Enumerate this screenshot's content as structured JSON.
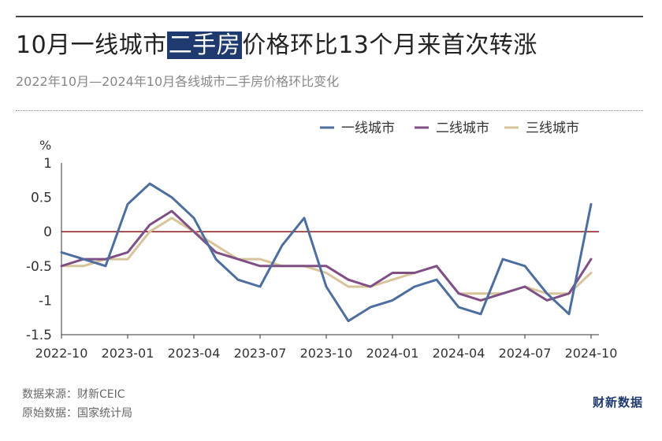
{
  "header": {
    "title_before": "10月一线城市",
    "title_highlight": "二手房",
    "title_after": "价格环比13个月来首次转涨",
    "subtitle": "2022年10月—2024年10月各线城市二手房价格环比变化"
  },
  "footer": {
    "source": "数据来源：财新CEIC",
    "original": "原始数据：国家统计局",
    "logo": "财新数据"
  },
  "chart_data": {
    "type": "line",
    "title": "",
    "unit": "%",
    "ylim": [
      -1.5,
      1
    ],
    "yticks": [
      "1",
      "0.5",
      "0",
      "-0.5",
      "-1",
      "-1.5"
    ],
    "ytick_values": [
      1,
      0.5,
      0,
      -0.5,
      -1,
      -1.5
    ],
    "x": [
      "2022-10",
      "2022-11",
      "2022-12",
      "2023-01",
      "2023-02",
      "2023-03",
      "2023-04",
      "2023-05",
      "2023-06",
      "2023-07",
      "2023-08",
      "2023-09",
      "2023-10",
      "2023-11",
      "2023-12",
      "2024-01",
      "2024-02",
      "2024-03",
      "2024-04",
      "2024-05",
      "2024-06",
      "2024-07",
      "2024-08",
      "2024-09",
      "2024-10"
    ],
    "xtick_labels": [
      "2022-10",
      "2023-01",
      "2023-04",
      "2023-07",
      "2023-10",
      "2024-01",
      "2024-04",
      "2024-07",
      "2024-10"
    ],
    "grid": false,
    "zero_line_color": "#8b1a1a",
    "legend_position": "top-right",
    "series": [
      {
        "name": "一线城市",
        "color": "#4d6e9e",
        "values": [
          -0.3,
          -0.4,
          -0.5,
          0.4,
          0.7,
          0.5,
          0.2,
          -0.4,
          -0.7,
          -0.8,
          -0.2,
          0.2,
          -0.8,
          -1.3,
          -1.1,
          -1.0,
          -0.8,
          -0.7,
          -1.1,
          -1.2,
          -0.4,
          -0.5,
          -0.9,
          -1.2,
          0.4
        ]
      },
      {
        "name": "二线城市",
        "color": "#7f4f86",
        "values": [
          -0.5,
          -0.4,
          -0.4,
          -0.3,
          0.1,
          0.3,
          0.0,
          -0.3,
          -0.4,
          -0.5,
          -0.5,
          -0.5,
          -0.5,
          -0.7,
          -0.8,
          -0.6,
          -0.6,
          -0.5,
          -0.9,
          -1.0,
          -0.9,
          -0.8,
          -1.0,
          -0.9,
          -0.4
        ]
      },
      {
        "name": "三线城市",
        "color": "#d8c49a",
        "values": [
          -0.5,
          -0.5,
          -0.4,
          -0.4,
          0.0,
          0.2,
          0.0,
          -0.2,
          -0.4,
          -0.4,
          -0.5,
          -0.5,
          -0.6,
          -0.8,
          -0.8,
          -0.7,
          -0.6,
          -0.5,
          -0.9,
          -0.9,
          -0.9,
          -0.8,
          -0.9,
          -0.9,
          -0.6
        ]
      }
    ]
  }
}
